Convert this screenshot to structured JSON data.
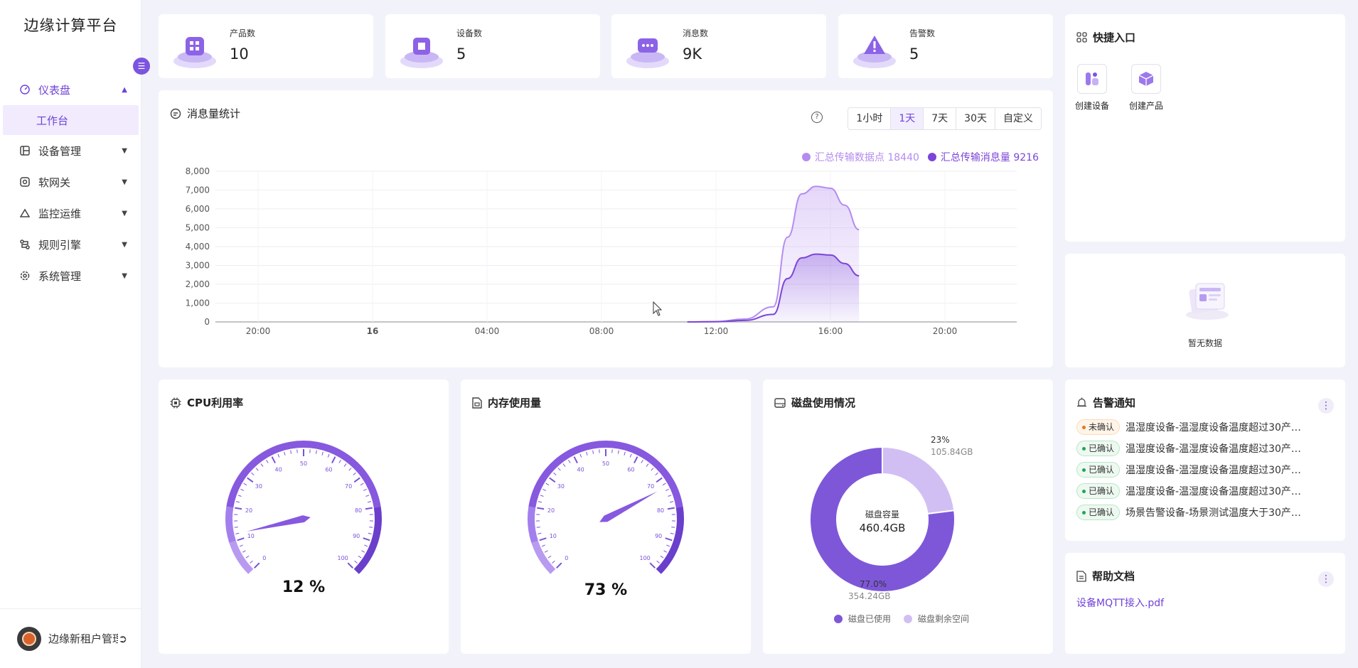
{
  "app": {
    "title": "边缘计算平台"
  },
  "sidebar": {
    "items": [
      {
        "label": "仪表盘",
        "icon": "dashboard-icon"
      },
      {
        "label": "设备管理",
        "icon": "device-icon"
      },
      {
        "label": "软网关",
        "icon": "gateway-icon"
      },
      {
        "label": "监控运维",
        "icon": "monitor-icon"
      },
      {
        "label": "规则引擎",
        "icon": "rule-icon"
      },
      {
        "label": "系统管理",
        "icon": "settings-icon"
      }
    ],
    "sub_item": "工作台",
    "user": {
      "name": "边缘新租户管理员…"
    }
  },
  "stats": [
    {
      "label": "产品数",
      "value": "10"
    },
    {
      "label": "设备数",
      "value": "5"
    },
    {
      "label": "消息数",
      "value": "9K"
    },
    {
      "label": "告警数",
      "value": "5"
    }
  ],
  "message_chart": {
    "title": "消息量统计",
    "ranges": [
      "1小时",
      "1天",
      "7天",
      "30天",
      "自定义"
    ],
    "selected_range": "1天",
    "legend": [
      "汇总传输数据点 18440",
      "汇总传输消息量 9216"
    ]
  },
  "chart_data": {
    "type": "area",
    "x_ticks": [
      "20:00",
      "16",
      "04:00",
      "08:00",
      "12:00",
      "16:00",
      "20:00"
    ],
    "y_ticks": [
      "8,000",
      "7,000",
      "6,000",
      "5,000",
      "4,000",
      "3,000",
      "2,000",
      "1,000",
      "0"
    ],
    "ylim": [
      0,
      8000
    ],
    "x_hours": [
      11,
      12,
      13,
      14,
      14.5,
      15,
      15.5,
      16,
      16.5,
      17
    ],
    "series": [
      {
        "name": "汇总传输数据点 18440",
        "color": "#b48cf0",
        "values": [
          0,
          20,
          150,
          800,
          4500,
          6800,
          7200,
          7100,
          6200,
          4900
        ]
      },
      {
        "name": "汇总传输消息量 9216",
        "color": "#7b45d8",
        "values": [
          0,
          10,
          80,
          400,
          2300,
          3400,
          3600,
          3550,
          3100,
          2450
        ]
      }
    ],
    "grid": true,
    "legend_position": "top-right"
  },
  "cpu": {
    "title": "CPU利用率",
    "value": 12,
    "value_text": "12 %",
    "ticks": [
      "0",
      "10",
      "20",
      "30",
      "40",
      "50",
      "60",
      "70",
      "80",
      "90",
      "100"
    ]
  },
  "memory": {
    "title": "内存使用量",
    "value": 73,
    "value_text": "73 %",
    "ticks": [
      "0",
      "10",
      "20",
      "30",
      "40",
      "50",
      "60",
      "70",
      "80",
      "90",
      "100"
    ]
  },
  "disk": {
    "title": "磁盘使用情况",
    "center_label": "磁盘容量",
    "center_value": "460.4GB",
    "used_pct": 77.0,
    "used_pct_text": "77.0%",
    "used_size": "354.24GB",
    "free_pct": 23,
    "free_pct_text": "23%",
    "free_size": "105.84GB",
    "legend": [
      "磁盘已使用",
      "磁盘剩余空间"
    ],
    "colors": {
      "used": "#7e57d9",
      "free": "#d1bff4"
    }
  },
  "quick": {
    "title": "快捷入口",
    "items": [
      {
        "label": "创建设备"
      },
      {
        "label": "创建产品"
      }
    ]
  },
  "empty": {
    "text": "暂无数据"
  },
  "alarms": {
    "title": "告警通知",
    "rows": [
      {
        "status": "未确认",
        "text": "温湿度设备-温湿度设备温度超过30产…"
      },
      {
        "status": "已确认",
        "text": "温湿度设备-温湿度设备温度超过30产…"
      },
      {
        "status": "已确认",
        "text": "温湿度设备-温湿度设备温度超过30产…"
      },
      {
        "status": "已确认",
        "text": "温湿度设备-温湿度设备温度超过30产…"
      },
      {
        "status": "已确认",
        "text": "场景告警设备-场景测试温度大于30产…"
      }
    ]
  },
  "docs": {
    "title": "帮助文档",
    "link": "设备MQTT接入.pdf"
  },
  "colors": {
    "accent": "#6f42d8",
    "bg": "#f2f3fa"
  }
}
